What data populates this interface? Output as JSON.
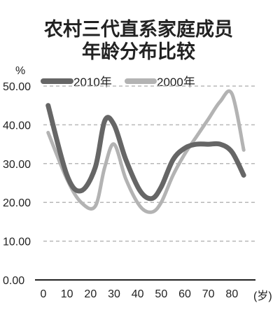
{
  "chart_data": {
    "type": "line",
    "title_lines": [
      "农村三代直系家庭成员",
      "年龄分布比较"
    ],
    "ylabel": "%",
    "xunit": "(岁)",
    "x": [
      2,
      10,
      16,
      22,
      26,
      30,
      35,
      41,
      46,
      50,
      55,
      60,
      65,
      70,
      75,
      80,
      85
    ],
    "series": [
      {
        "name": "2010年",
        "color": "#666666",
        "values": [
          45.0,
          27.0,
          23.0,
          29.0,
          41.0,
          40.0,
          31.0,
          23.0,
          21.0,
          24.0,
          31.0,
          34.0,
          35.0,
          35.0,
          35.0,
          33.0,
          27.0
        ]
      },
      {
        "name": "2000年",
        "color": "#b3b3b3",
        "values": [
          38.0,
          26.0,
          20.0,
          19.0,
          29.0,
          35.0,
          26.0,
          19.0,
          17.5,
          20.0,
          27.0,
          32.5,
          37.0,
          41.5,
          46.0,
          48.0,
          33.5
        ]
      }
    ],
    "yticks": [
      "0.00",
      "10.00",
      "20.00",
      "30.00",
      "40.00",
      "50.00"
    ],
    "ytick_values": [
      0,
      10,
      20,
      30,
      40,
      50
    ],
    "xticks": [
      "0",
      "10",
      "20",
      "30",
      "40",
      "50",
      "60",
      "70",
      "80"
    ],
    "xtick_values": [
      0,
      10,
      20,
      30,
      40,
      50,
      60,
      70,
      80
    ],
    "xlim": [
      0,
      90
    ],
    "ylim": [
      0,
      50
    ],
    "grid": true,
    "legend_position": "top-left"
  }
}
